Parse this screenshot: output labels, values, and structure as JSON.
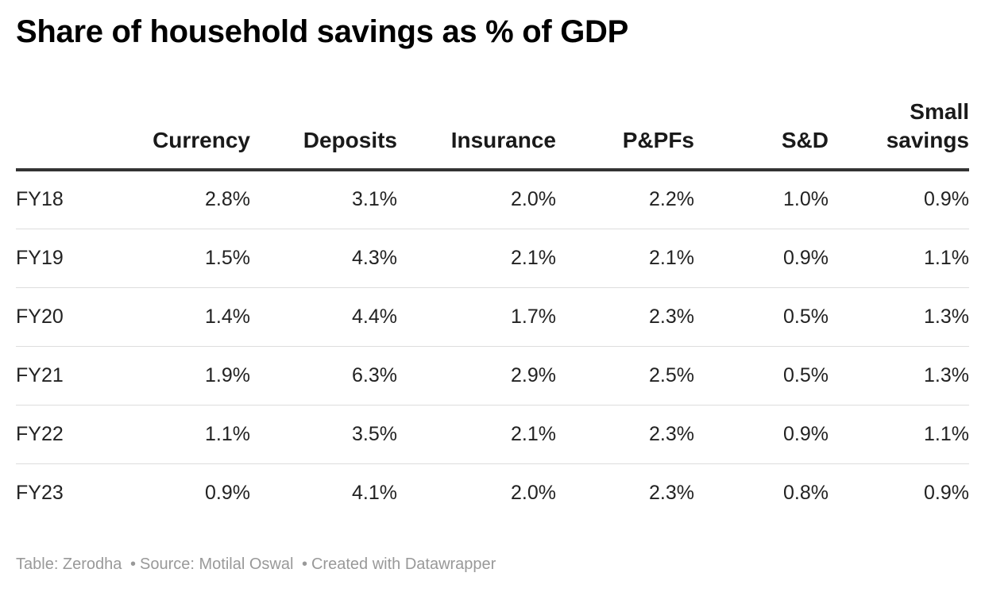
{
  "title": "Share of household savings as % of GDP",
  "chart_data": {
    "type": "table",
    "title": "Share of household savings as % of GDP",
    "columns": [
      "",
      "Currency",
      "Deposits",
      "Insurance",
      "P&PFs",
      "S&D",
      "Small savings"
    ],
    "rows": [
      {
        "label": "FY18",
        "values": [
          "2.8%",
          "3.1%",
          "2.0%",
          "2.2%",
          "1.0%",
          "0.9%"
        ]
      },
      {
        "label": "FY19",
        "values": [
          "1.5%",
          "4.3%",
          "2.1%",
          "2.1%",
          "0.9%",
          "1.1%"
        ]
      },
      {
        "label": "FY20",
        "values": [
          "1.4%",
          "4.4%",
          "1.7%",
          "2.3%",
          "0.5%",
          "1.3%"
        ]
      },
      {
        "label": "FY21",
        "values": [
          "1.9%",
          "6.3%",
          "2.9%",
          "2.5%",
          "0.5%",
          "1.3%"
        ]
      },
      {
        "label": "FY22",
        "values": [
          "1.1%",
          "3.5%",
          "2.1%",
          "2.3%",
          "0.9%",
          "1.1%"
        ]
      },
      {
        "label": "FY23",
        "values": [
          "0.9%",
          "4.1%",
          "2.0%",
          "2.3%",
          "0.8%",
          "0.9%"
        ]
      }
    ]
  },
  "footer": {
    "table_credit": "Table: Zerodha",
    "separator": "•",
    "source": "Source: Motilal Oswal",
    "created_with": "Created with Datawrapper"
  },
  "colors": {
    "text": "#181818",
    "header_rule": "#333333",
    "row_rule": "#dddddd",
    "footer_text": "#999999"
  }
}
